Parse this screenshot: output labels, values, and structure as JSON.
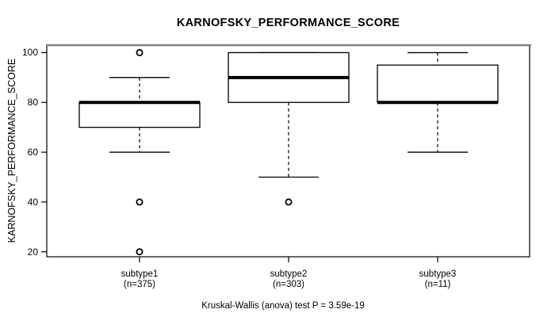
{
  "chart_data": {
    "type": "boxplot",
    "title": "KARNOFSKY_PERFORMANCE_SCORE",
    "ylabel": "KARNOFSKY_PERFORMANCE_SCORE",
    "caption": "Kruskal-Wallis (anova) test P = 3.59e-19",
    "ylim": [
      18,
      103
    ],
    "yticks": [
      100,
      80,
      60,
      40,
      20
    ],
    "ytick_labels": [
      "100",
      "80",
      "60",
      "40",
      "20"
    ],
    "grid": false,
    "legend": "none",
    "box_color": "#000000",
    "background_color": "#ffffff",
    "groups": [
      {
        "label": "subtype1",
        "sublabel": "(n=375)",
        "whisker_low": 60,
        "q1": 70,
        "median": 80,
        "q3": 80,
        "whisker_high": 90,
        "outliers": [
          100,
          40,
          20
        ]
      },
      {
        "label": "subtype2",
        "sublabel": "(n=303)",
        "whisker_low": 50,
        "q1": 80,
        "median": 90,
        "q3": 100,
        "whisker_high": 100,
        "outliers": [
          40
        ]
      },
      {
        "label": "subtype3",
        "sublabel": "(n=11)",
        "whisker_low": 60,
        "q1": 80,
        "median": 80,
        "q3": 95,
        "whisker_high": 100,
        "outliers": []
      }
    ]
  }
}
